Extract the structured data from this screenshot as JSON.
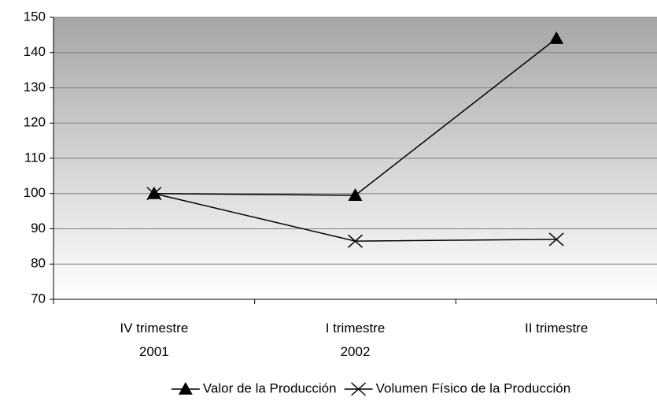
{
  "chart_data": {
    "type": "line",
    "categories": [
      "IV trimestre\n2001",
      "I trimestre\n2002",
      "II trimestre"
    ],
    "series": [
      {
        "name": "Valor de la Producción",
        "color": "#000000",
        "marker": "triangle",
        "values": [
          100,
          99.5,
          144
        ]
      },
      {
        "name": "Volumen Físico de la Producción",
        "color": "#000000",
        "marker": "x",
        "values": [
          100,
          86.5,
          87
        ]
      }
    ],
    "ylim": [
      70,
      150
    ],
    "yticks": [
      70,
      80,
      90,
      100,
      110,
      120,
      130,
      140,
      150
    ],
    "grid": true,
    "legend": "bottom"
  }
}
